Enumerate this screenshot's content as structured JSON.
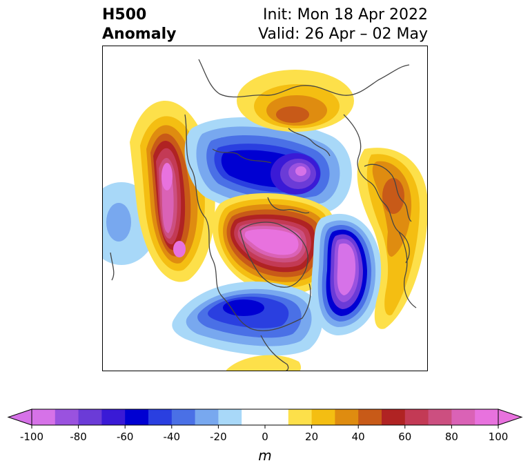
{
  "title": {
    "left_line1": "H500",
    "left_line2": "Anomaly",
    "right_line1": "Init: Mon 18 Apr 2022",
    "right_line2": "Valid: 26 Apr – 02 May"
  },
  "colorbar": {
    "units": "m",
    "ticks": [
      "-100",
      "-80",
      "-60",
      "-40",
      "-20",
      "0",
      "20",
      "40",
      "60",
      "80",
      "100"
    ],
    "bounds": [
      -100,
      100
    ],
    "step": 10,
    "colors": [
      "#d672e8",
      "#9a52df",
      "#6b3bd7",
      "#3a1ad6",
      "#0000d2",
      "#2a3fe0",
      "#4a70e6",
      "#78a8ef",
      "#a8d8f8",
      "#ffffff",
      "#ffffff",
      "#fde04a",
      "#f4be12",
      "#df8c10",
      "#c85a18",
      "#b02323",
      "#c33a55",
      "#cc4f80",
      "#da62b6",
      "#e872de"
    ],
    "extend_low_color": "#d672e8",
    "extend_high_color": "#e872de"
  },
  "map": {
    "projection": "north-polar-stereographic",
    "features": [
      {
        "name": "positive-anomaly-northeast-pacific",
        "max": 100
      },
      {
        "name": "positive-anomaly-greenland-arctic-canada",
        "max": 100
      },
      {
        "name": "negative-anomaly-north-atlantic",
        "min": -100
      },
      {
        "name": "negative-anomaly-central-us",
        "min": -60
      },
      {
        "name": "negative-anomaly-siberia-arctic-ocean",
        "min": -100
      },
      {
        "name": "positive-anomaly-east-siberia",
        "max": 40
      },
      {
        "name": "positive-anomaly-europe",
        "max": 40
      },
      {
        "name": "negative-anomaly-central-pacific",
        "min": -40
      },
      {
        "name": "positive-anomaly-caribbean",
        "max": 20
      }
    ]
  }
}
